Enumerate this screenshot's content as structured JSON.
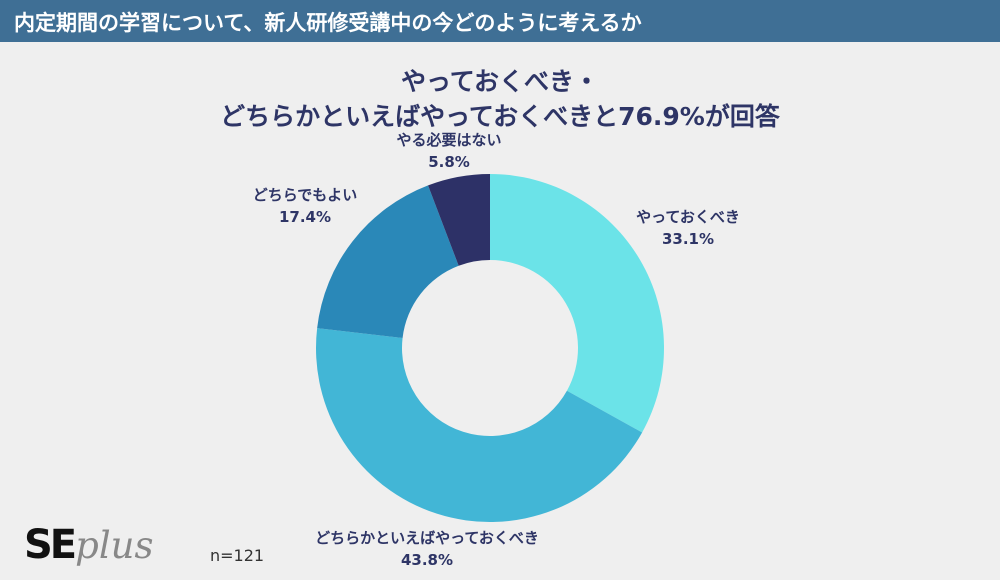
{
  "header": {
    "title": "内定期間の学習について、新人研修受講中の今どのように考えるか"
  },
  "headline": {
    "line1": "やっておくべき・",
    "line2": "どちらかといえばやっておくべきと76.9%が回答"
  },
  "chart_data": {
    "type": "pie",
    "donut": true,
    "slices": [
      {
        "label": "やっておくべき",
        "value": 33.1,
        "value_label": "33.1%",
        "color": "#6be3e8"
      },
      {
        "label": "どちらかといえばやっておくべき",
        "value": 43.8,
        "value_label": "43.8%",
        "color": "#42b6d6"
      },
      {
        "label": "どちらでもよい",
        "value": 17.4,
        "value_label": "17.4%",
        "color": "#2a88b8"
      },
      {
        "label": "やる必要はない",
        "value": 5.8,
        "value_label": "5.8%",
        "color": "#2d3167"
      }
    ],
    "start": "12 o'clock",
    "direction": "clockwise"
  },
  "footer": {
    "logo_main": "SE",
    "logo_sub": "plus",
    "sample_size": "n=121"
  }
}
